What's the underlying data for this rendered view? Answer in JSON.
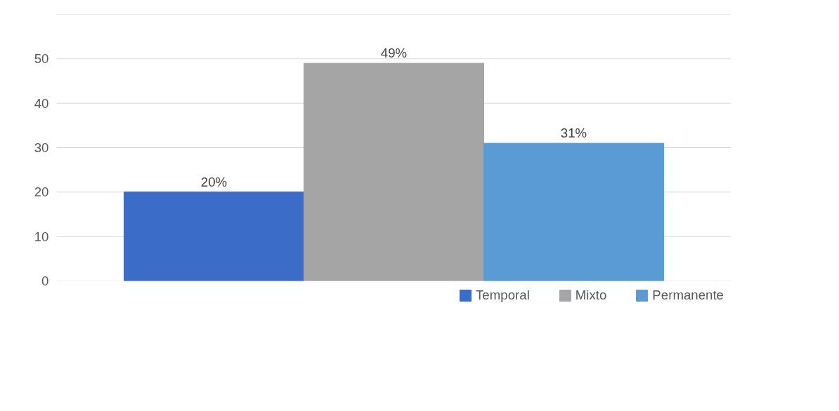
{
  "chart_data": {
    "type": "bar",
    "categories": [
      null
    ],
    "series": [
      {
        "name": "Temporal",
        "color": "#3b6cc8",
        "values": [
          20
        ],
        "value_labels": [
          "20%"
        ]
      },
      {
        "name": "Mixto",
        "color": "#a5a5a5",
        "values": [
          49
        ],
        "value_labels": [
          "49%"
        ]
      },
      {
        "name": "Permanente",
        "color": "#5b9bd5",
        "values": [
          31
        ],
        "value_labels": [
          "31%"
        ]
      }
    ],
    "ylim": [
      0,
      60
    ],
    "yticks": [
      0,
      10,
      20,
      30,
      40,
      50,
      {
        "value": 60,
        "label": null
      }
    ],
    "grid": "y",
    "legend": "bottom"
  }
}
